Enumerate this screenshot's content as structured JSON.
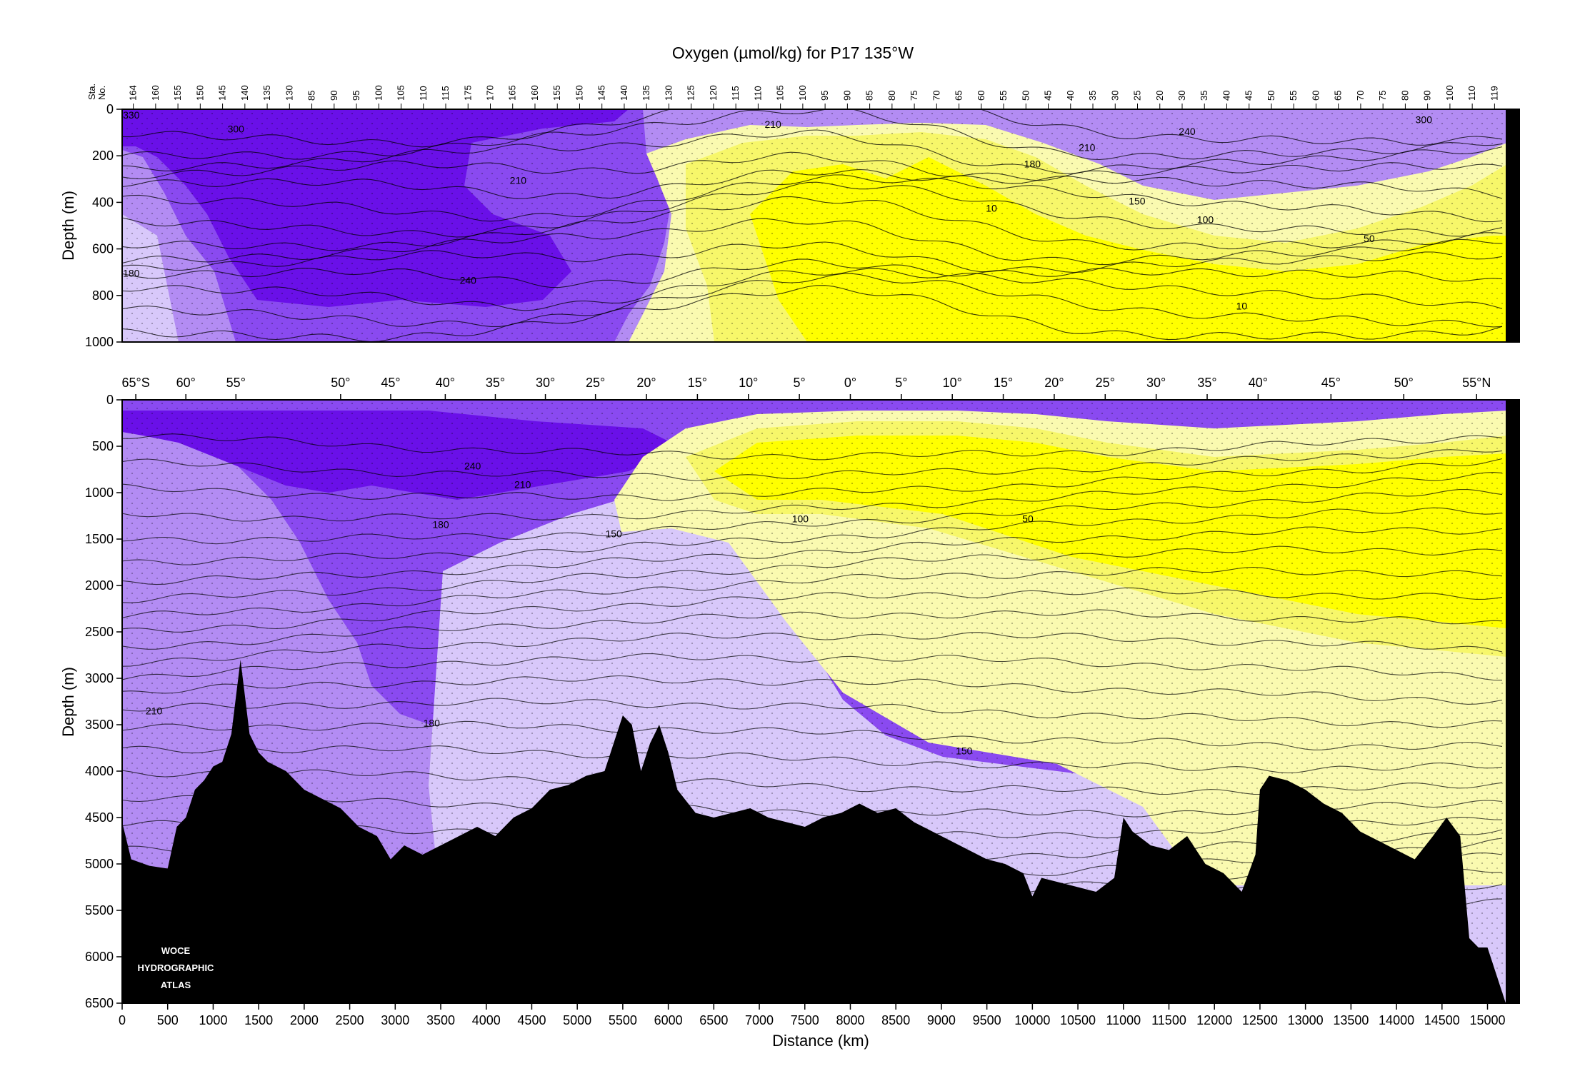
{
  "chart_data": [
    {
      "type": "heatmap",
      "title": "Oxygen (µmol/kg) for P17 135°W",
      "ylabel": "Depth (m)",
      "ylim": [
        1000,
        0
      ],
      "xlim": [
        0,
        15200
      ],
      "y_ticks": [
        0,
        200,
        400,
        600,
        800,
        1000
      ],
      "station_axis_label": [
        "Sta.",
        "No."
      ],
      "stations": [
        "164",
        "160",
        "155",
        "150",
        "145",
        "140",
        "135",
        "130",
        "85",
        "90",
        "95",
        "100",
        "105",
        "110",
        "115",
        "175",
        "170",
        "165",
        "160",
        "155",
        "150",
        "145",
        "140",
        "135",
        "130",
        "125",
        "120",
        "115",
        "110",
        "105",
        "100",
        "95",
        "90",
        "85",
        "80",
        "75",
        "70",
        "65",
        "60",
        "55",
        "50",
        "45",
        "40",
        "35",
        "30",
        "25",
        "20",
        "30",
        "35",
        "40",
        "45",
        "50",
        "55",
        "60",
        "65",
        "70",
        "75",
        "80",
        "90",
        "100",
        "110",
        "119"
      ],
      "colors": {
        "purple_dark": "#6a10e8",
        "purple_mid": "#8a4af0",
        "purple_light": "#b38cf3",
        "lavender": "#d8c8fa",
        "yellow_pale": "#fafab0",
        "yellow_mid": "#f7f76a",
        "yellow": "#ffff00",
        "seafloor": "#000000"
      },
      "contour_labels": [
        {
          "text": "330",
          "x": 100,
          "y": 40
        },
        {
          "text": "300",
          "x": 1250,
          "y": 100
        },
        {
          "text": "210",
          "x": 4350,
          "y": 320
        },
        {
          "text": "240",
          "x": 3800,
          "y": 750
        },
        {
          "text": "180",
          "x": 100,
          "y": 720
        },
        {
          "text": "210",
          "x": 7150,
          "y": 80
        },
        {
          "text": "10",
          "x": 9550,
          "y": 440
        },
        {
          "text": "180",
          "x": 10000,
          "y": 250
        },
        {
          "text": "210",
          "x": 10600,
          "y": 180
        },
        {
          "text": "240",
          "x": 11700,
          "y": 110
        },
        {
          "text": "150",
          "x": 11150,
          "y": 410
        },
        {
          "text": "100",
          "x": 11900,
          "y": 490
        },
        {
          "text": "50",
          "x": 13700,
          "y": 570
        },
        {
          "text": "10",
          "x": 12300,
          "y": 860
        },
        {
          "text": "300",
          "x": 14300,
          "y": 60
        }
      ]
    },
    {
      "type": "heatmap",
      "ylabel": "Depth (m)",
      "xlabel": "Distance (km)",
      "ylim": [
        6500,
        0
      ],
      "xlim": [
        0,
        15200
      ],
      "y_ticks": [
        0,
        500,
        1000,
        1500,
        2000,
        2500,
        3000,
        3500,
        4000,
        4500,
        5000,
        5500,
        6000,
        6500
      ],
      "x_ticks": [
        0,
        500,
        1000,
        1500,
        2000,
        2500,
        3000,
        3500,
        4000,
        4500,
        5000,
        5500,
        6000,
        6500,
        7000,
        7500,
        8000,
        8500,
        9000,
        9500,
        10000,
        10500,
        11000,
        11500,
        12000,
        12500,
        13000,
        13500,
        14000,
        14500,
        15000
      ],
      "latitude_ticks": [
        {
          "label": "65°S",
          "km": 150
        },
        {
          "label": "60°",
          "km": 700
        },
        {
          "label": "55°",
          "km": 1250
        },
        {
          "label": "50°",
          "km": 2400
        },
        {
          "label": "45°",
          "km": 2950
        },
        {
          "label": "40°",
          "km": 3550
        },
        {
          "label": "35°",
          "km": 4100
        },
        {
          "label": "30°",
          "km": 4650
        },
        {
          "label": "25°",
          "km": 5200
        },
        {
          "label": "20°",
          "km": 5760
        },
        {
          "label": "15°",
          "km": 6320
        },
        {
          "label": "10°",
          "km": 6880
        },
        {
          "label": "5°",
          "km": 7440
        },
        {
          "label": "0°",
          "km": 8000
        },
        {
          "label": "5°",
          "km": 8560
        },
        {
          "label": "10°",
          "km": 9120
        },
        {
          "label": "15°",
          "km": 9680
        },
        {
          "label": "20°",
          "km": 10240
        },
        {
          "label": "25°",
          "km": 10800
        },
        {
          "label": "30°",
          "km": 11360
        },
        {
          "label": "35°",
          "km": 11920
        },
        {
          "label": "40°",
          "km": 12480
        },
        {
          "label": "45°",
          "km": 13280
        },
        {
          "label": "50°",
          "km": 14080
        },
        {
          "label": "55°N",
          "km": 14880
        }
      ],
      "seafloor_depth_profile": [
        [
          0,
          4550
        ],
        [
          100,
          4950
        ],
        [
          300,
          5020
        ],
        [
          500,
          5050
        ],
        [
          600,
          4600
        ],
        [
          700,
          4500
        ],
        [
          800,
          4200
        ],
        [
          900,
          4100
        ],
        [
          1000,
          3950
        ],
        [
          1100,
          3900
        ],
        [
          1200,
          3600
        ],
        [
          1300,
          2800
        ],
        [
          1400,
          3600
        ],
        [
          1500,
          3800
        ],
        [
          1600,
          3900
        ],
        [
          1800,
          4000
        ],
        [
          2000,
          4200
        ],
        [
          2200,
          4300
        ],
        [
          2400,
          4400
        ],
        [
          2600,
          4600
        ],
        [
          2800,
          4700
        ],
        [
          2950,
          4950
        ],
        [
          3100,
          4800
        ],
        [
          3300,
          4900
        ],
        [
          3500,
          4800
        ],
        [
          3700,
          4700
        ],
        [
          3900,
          4600
        ],
        [
          4100,
          4700
        ],
        [
          4300,
          4500
        ],
        [
          4500,
          4400
        ],
        [
          4700,
          4200
        ],
        [
          4900,
          4150
        ],
        [
          5100,
          4050
        ],
        [
          5300,
          4000
        ],
        [
          5400,
          3700
        ],
        [
          5500,
          3400
        ],
        [
          5600,
          3500
        ],
        [
          5700,
          4000
        ],
        [
          5800,
          3700
        ],
        [
          5900,
          3500
        ],
        [
          6000,
          3800
        ],
        [
          6100,
          4200
        ],
        [
          6300,
          4450
        ],
        [
          6500,
          4500
        ],
        [
          6700,
          4450
        ],
        [
          6900,
          4400
        ],
        [
          7100,
          4500
        ],
        [
          7300,
          4550
        ],
        [
          7500,
          4600
        ],
        [
          7700,
          4500
        ],
        [
          7900,
          4450
        ],
        [
          8100,
          4350
        ],
        [
          8300,
          4450
        ],
        [
          8500,
          4400
        ],
        [
          8700,
          4550
        ],
        [
          8900,
          4650
        ],
        [
          9100,
          4750
        ],
        [
          9300,
          4850
        ],
        [
          9500,
          4950
        ],
        [
          9700,
          5000
        ],
        [
          9900,
          5100
        ],
        [
          10000,
          5350
        ],
        [
          10100,
          5150
        ],
        [
          10300,
          5200
        ],
        [
          10500,
          5250
        ],
        [
          10700,
          5300
        ],
        [
          10900,
          5150
        ],
        [
          11000,
          4500
        ],
        [
          11100,
          4650
        ],
        [
          11300,
          4800
        ],
        [
          11500,
          4850
        ],
        [
          11700,
          4700
        ],
        [
          11900,
          5000
        ],
        [
          12100,
          5100
        ],
        [
          12300,
          5300
        ],
        [
          12450,
          4900
        ],
        [
          12500,
          4200
        ],
        [
          12600,
          4050
        ],
        [
          12800,
          4100
        ],
        [
          13000,
          4200
        ],
        [
          13200,
          4350
        ],
        [
          13400,
          4450
        ],
        [
          13600,
          4650
        ],
        [
          13800,
          4750
        ],
        [
          14000,
          4850
        ],
        [
          14200,
          4950
        ],
        [
          14400,
          4700
        ],
        [
          14550,
          4500
        ],
        [
          14700,
          4700
        ],
        [
          14800,
          5800
        ],
        [
          14900,
          5900
        ],
        [
          15000,
          5900
        ]
      ],
      "contour_labels": [
        {
          "text": "240",
          "x": 3850,
          "y": 750
        },
        {
          "text": "210",
          "x": 4400,
          "y": 950
        },
        {
          "text": "180",
          "x": 3500,
          "y": 1380
        },
        {
          "text": "150",
          "x": 5400,
          "y": 1480
        },
        {
          "text": "100",
          "x": 7450,
          "y": 1320
        },
        {
          "text": "50",
          "x": 9950,
          "y": 1320
        },
        {
          "text": "210",
          "x": 350,
          "y": 3390
        },
        {
          "text": "180",
          "x": 3400,
          "y": 3520
        },
        {
          "text": "150",
          "x": 9250,
          "y": 3820
        }
      ],
      "watermark": [
        "WOCE",
        "HYDROGRAPHIC",
        "ATLAS"
      ]
    }
  ]
}
